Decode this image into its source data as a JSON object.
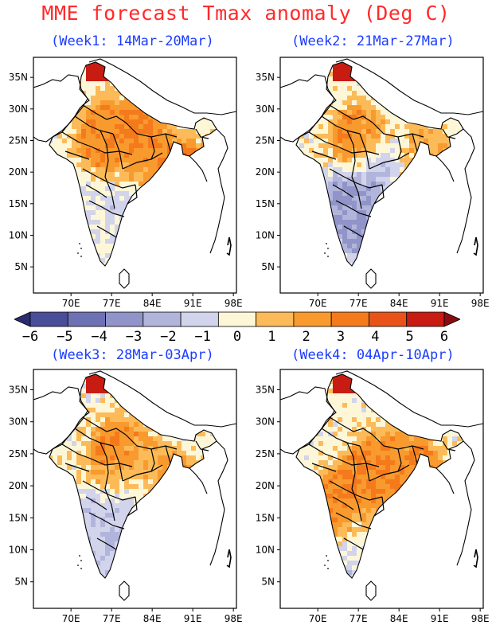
{
  "title": "MME forecast Tmax anomaly (Deg C)",
  "panels": [
    {
      "subtitle": "(Week1: 14Mar-20Mar)",
      "pattern": [
        [
          0.3,
          0.62,
          -0.6
        ],
        [
          0.45,
          0.58,
          -1.2
        ],
        [
          0.48,
          0.33,
          2.8
        ],
        [
          0.7,
          0.48,
          3.2
        ],
        [
          0.76,
          0.52,
          4.2
        ],
        [
          0.35,
          0.3,
          2.2
        ],
        [
          0.55,
          0.42,
          1.6
        ],
        [
          0.58,
          0.72,
          -0.8
        ],
        [
          0.45,
          0.8,
          -0.4
        ]
      ]
    },
    {
      "subtitle": "(Week2: 21Mar-27Mar)",
      "pattern": [
        [
          0.35,
          0.55,
          -2.6
        ],
        [
          0.42,
          0.65,
          -2.8
        ],
        [
          0.5,
          0.45,
          -2.2
        ],
        [
          0.38,
          0.32,
          2.2
        ],
        [
          0.65,
          0.52,
          2.4
        ],
        [
          0.7,
          0.4,
          1.4
        ],
        [
          0.58,
          0.8,
          -1.5
        ],
        [
          0.72,
          0.62,
          -0.4
        ]
      ]
    },
    {
      "subtitle": "(Week3: 28Mar-03Apr)",
      "pattern": [
        [
          0.3,
          0.6,
          -1.3
        ],
        [
          0.4,
          0.7,
          -1.6
        ],
        [
          0.48,
          0.5,
          -0.8
        ],
        [
          0.4,
          0.33,
          2.4
        ],
        [
          0.68,
          0.5,
          3.0
        ],
        [
          0.74,
          0.55,
          3.4
        ],
        [
          0.6,
          0.78,
          -0.9
        ],
        [
          0.55,
          0.4,
          1.3
        ]
      ]
    },
    {
      "subtitle": "(Week4: 04Apr-10Apr)",
      "pattern": [
        [
          0.3,
          0.52,
          2.4
        ],
        [
          0.44,
          0.4,
          2.6
        ],
        [
          0.68,
          0.52,
          3.6
        ],
        [
          0.76,
          0.56,
          4.2
        ],
        [
          0.52,
          0.62,
          1.4
        ],
        [
          0.4,
          0.7,
          -1.0
        ],
        [
          0.58,
          0.8,
          -0.6
        ],
        [
          0.62,
          0.36,
          2.0
        ]
      ]
    }
  ],
  "axes": {
    "lat_ticks": [
      "35N",
      "30N",
      "25N",
      "20N",
      "15N",
      "10N",
      "5N"
    ],
    "lon_ticks": [
      "70E",
      "77E",
      "84E",
      "91E",
      "98E"
    ]
  },
  "colorbar": {
    "labels": [
      "−6",
      "−5",
      "−4",
      "−3",
      "−2",
      "−1",
      "0",
      "1",
      "2",
      "3",
      "4",
      "5",
      "6"
    ],
    "colors": [
      "#2b2c70",
      "#4a4e9a",
      "#6d72b5",
      "#9094c8",
      "#b2b5db",
      "#d2d4ec",
      "#fdf7d8",
      "#fcbb58",
      "#f99a2e",
      "#f47a1c",
      "#e9531a",
      "#c81c12",
      "#8a0c10"
    ]
  },
  "colors": {
    "title": "#ff2a2a",
    "subtitle": "#1a3cff",
    "land_neutral": "#ffffff",
    "outline": "#000000"
  }
}
